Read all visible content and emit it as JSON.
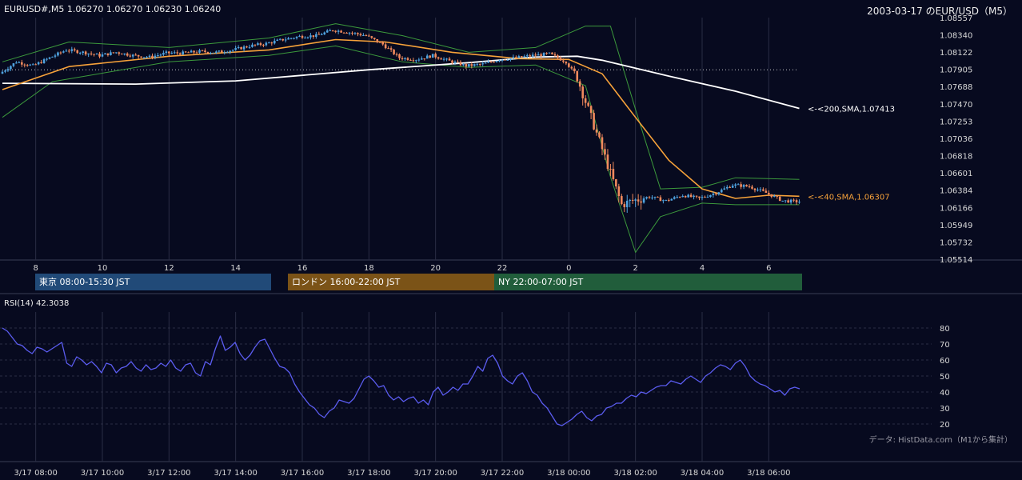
{
  "header": {
    "symbol_info": "EURUSD#,M5 1.06270 1.06270 1.06230 1.06240",
    "date_title": "2003-03-17 のEUR/USD（M5）"
  },
  "colors": {
    "background": "#070a1f",
    "grid": "#2a2d44",
    "axis_text": "#d7d7d7",
    "candle_up": "#4fa3e0",
    "candle_down": "#f08a5d",
    "bollinger": "#3c9a3c",
    "sma40": "#f7a23a",
    "sma200": "#ffffff",
    "rsi": "#5b5cf0",
    "session_tokyo": "#214a78",
    "session_london": "#7b5317",
    "session_ny": "#215d3b"
  },
  "price_axis_labels": [
    "1.08557",
    "1.08340",
    "1.08122",
    "1.07905",
    "1.07688",
    "1.07470",
    "1.07253",
    "1.07036",
    "1.06818",
    "1.06601",
    "1.06384",
    "1.06166",
    "1.05949",
    "1.05732",
    "1.05514"
  ],
  "hour_axis_labels": [
    "8",
    "10",
    "12",
    "14",
    "16",
    "18",
    "20",
    "22",
    "0",
    "2",
    "4",
    "6"
  ],
  "sessions": [
    {
      "label": "東京 08:00-15:30 JST"
    },
    {
      "label": "ロンドン 16:00-22:00 JST"
    },
    {
      "label": "NY 22:00-07:00 JST"
    }
  ],
  "indicator_labels": {
    "sma200": "<-<200,SMA,1.07413",
    "sma40": "<-<40,SMA,1.06307"
  },
  "rsi": {
    "title": "RSI(14) 42.3038",
    "ticks": [
      "80",
      "70",
      "60",
      "50",
      "40",
      "30",
      "20"
    ]
  },
  "source_note": "データ: HistData.com（M1から集計）",
  "time_axis_labels": [
    "3/17 08:00",
    "3/17 10:00",
    "3/17 12:00",
    "3/17 14:00",
    "3/17 16:00",
    "3/17 18:00",
    "3/17 20:00",
    "3/17 22:00",
    "3/18 00:00",
    "3/18 02:00",
    "3/18 04:00",
    "3/18 06:00"
  ],
  "chart_data": [
    {
      "type": "candlestick",
      "title": "2003-03-17 のEUR/USD（M5）",
      "symbol": "EURUSD#,M5",
      "last_ohlc": {
        "open": 1.0627,
        "high": 1.0627,
        "low": 1.0623,
        "close": 1.0624
      },
      "ylim": [
        1.05514,
        1.08557
      ],
      "x_hour_ticks": [
        "8",
        "10",
        "12",
        "14",
        "16",
        "18",
        "20",
        "22",
        "0",
        "2",
        "4",
        "6"
      ],
      "close_path": [
        {
          "t": "07:00",
          "v": 1.0785
        },
        {
          "t": "07:30",
          "v": 1.08
        },
        {
          "t": "08:00",
          "v": 1.0795
        },
        {
          "t": "08:30",
          "v": 1.0805
        },
        {
          "t": "09:00",
          "v": 1.0815
        },
        {
          "t": "09:30",
          "v": 1.0812
        },
        {
          "t": "10:00",
          "v": 1.0808
        },
        {
          "t": "10:30",
          "v": 1.0812
        },
        {
          "t": "11:00",
          "v": 1.0808
        },
        {
          "t": "11:30",
          "v": 1.0806
        },
        {
          "t": "12:00",
          "v": 1.0811
        },
        {
          "t": "12:30",
          "v": 1.0811
        },
        {
          "t": "13:00",
          "v": 1.0813
        },
        {
          "t": "13:30",
          "v": 1.0812
        },
        {
          "t": "14:00",
          "v": 1.0815
        },
        {
          "t": "14:30",
          "v": 1.082
        },
        {
          "t": "15:00",
          "v": 1.0823
        },
        {
          "t": "15:30",
          "v": 1.0828
        },
        {
          "t": "16:00",
          "v": 1.0832
        },
        {
          "t": "16:30",
          "v": 1.0833
        },
        {
          "t": "17:00",
          "v": 1.084
        },
        {
          "t": "17:30",
          "v": 1.0837
        },
        {
          "t": "18:00",
          "v": 1.0833
        },
        {
          "t": "18:30",
          "v": 1.0822
        },
        {
          "t": "19:00",
          "v": 1.0805
        },
        {
          "t": "19:30",
          "v": 1.0803
        },
        {
          "t": "20:00",
          "v": 1.0808
        },
        {
          "t": "20:30",
          "v": 1.0801
        },
        {
          "t": "21:00",
          "v": 1.0795
        },
        {
          "t": "21:30",
          "v": 1.0797
        },
        {
          "t": "22:00",
          "v": 1.0803
        },
        {
          "t": "22:30",
          "v": 1.0805
        },
        {
          "t": "23:00",
          "v": 1.0808
        },
        {
          "t": "23:30",
          "v": 1.081
        },
        {
          "t": "00:00",
          "v": 1.08
        },
        {
          "t": "00:20",
          "v": 1.078
        },
        {
          "t": "00:40",
          "v": 1.074
        },
        {
          "t": "01:00",
          "v": 1.07
        },
        {
          "t": "01:20",
          "v": 1.066
        },
        {
          "t": "01:40",
          "v": 1.062
        },
        {
          "t": "02:00",
          "v": 1.0625
        },
        {
          "t": "02:30",
          "v": 1.063
        },
        {
          "t": "03:00",
          "v": 1.0625
        },
        {
          "t": "03:30",
          "v": 1.0632
        },
        {
          "t": "04:00",
          "v": 1.0628
        },
        {
          "t": "04:30",
          "v": 1.0635
        },
        {
          "t": "05:00",
          "v": 1.0645
        },
        {
          "t": "05:30",
          "v": 1.0643
        },
        {
          "t": "06:00",
          "v": 1.0635
        },
        {
          "t": "06:30",
          "v": 1.0625
        },
        {
          "t": "06:55",
          "v": 1.0624
        }
      ],
      "sma200": [
        {
          "t": "07:00",
          "v": 1.0773
        },
        {
          "t": "11:00",
          "v": 1.0772
        },
        {
          "t": "14:00",
          "v": 1.0776
        },
        {
          "t": "18:00",
          "v": 1.079
        },
        {
          "t": "21:00",
          "v": 1.0799
        },
        {
          "t": "23:00",
          "v": 1.0806
        },
        {
          "t": "00:15",
          "v": 1.0807
        },
        {
          "t": "01:00",
          "v": 1.0802
        },
        {
          "t": "03:00",
          "v": 1.0782
        },
        {
          "t": "05:00",
          "v": 1.0763
        },
        {
          "t": "06:55",
          "v": 1.07413
        }
      ],
      "sma40": [
        {
          "t": "07:00",
          "v": 1.0765
        },
        {
          "t": "09:00",
          "v": 1.0794
        },
        {
          "t": "12:00",
          "v": 1.0807
        },
        {
          "t": "15:00",
          "v": 1.0815
        },
        {
          "t": "17:00",
          "v": 1.0828
        },
        {
          "t": "18:30",
          "v": 1.0825
        },
        {
          "t": "20:30",
          "v": 1.0812
        },
        {
          "t": "22:30",
          "v": 1.0804
        },
        {
          "t": "00:00",
          "v": 1.0803
        },
        {
          "t": "01:00",
          "v": 1.0785
        },
        {
          "t": "02:00",
          "v": 1.073
        },
        {
          "t": "03:00",
          "v": 1.0676
        },
        {
          "t": "04:00",
          "v": 1.064
        },
        {
          "t": "05:00",
          "v": 1.0628
        },
        {
          "t": "06:00",
          "v": 1.0632
        },
        {
          "t": "06:55",
          "v": 1.06307
        }
      ],
      "bollinger_upper": [
        {
          "t": "07:00",
          "v": 1.08
        },
        {
          "t": "09:00",
          "v": 1.0825
        },
        {
          "t": "12:00",
          "v": 1.0818
        },
        {
          "t": "15:00",
          "v": 1.083
        },
        {
          "t": "17:00",
          "v": 1.0848
        },
        {
          "t": "19:00",
          "v": 1.0833
        },
        {
          "t": "21:00",
          "v": 1.0812
        },
        {
          "t": "23:00",
          "v": 1.0818
        },
        {
          "t": "00:30",
          "v": 1.0845
        },
        {
          "t": "01:15",
          "v": 1.0845
        },
        {
          "t": "02:00",
          "v": 1.074
        },
        {
          "t": "02:45",
          "v": 1.064
        },
        {
          "t": "04:00",
          "v": 1.0642
        },
        {
          "t": "05:00",
          "v": 1.0654
        },
        {
          "t": "06:55",
          "v": 1.0652
        }
      ],
      "bollinger_lower": [
        {
          "t": "07:00",
          "v": 1.073
        },
        {
          "t": "08:30",
          "v": 1.0775
        },
        {
          "t": "12:00",
          "v": 1.08
        },
        {
          "t": "15:00",
          "v": 1.0808
        },
        {
          "t": "17:00",
          "v": 1.082
        },
        {
          "t": "19:00",
          "v": 1.08
        },
        {
          "t": "21:00",
          "v": 1.0793
        },
        {
          "t": "23:00",
          "v": 1.0796
        },
        {
          "t": "00:30",
          "v": 1.077
        },
        {
          "t": "01:15",
          "v": 1.0655
        },
        {
          "t": "02:00",
          "v": 1.056
        },
        {
          "t": "02:45",
          "v": 1.0605
        },
        {
          "t": "04:00",
          "v": 1.0622
        },
        {
          "t": "05:00",
          "v": 1.062
        },
        {
          "t": "06:55",
          "v": 1.062
        }
      ],
      "reference_level": 1.079,
      "annotations": [
        "<-<200,SMA,1.07413",
        "<-<40,SMA,1.06307"
      ]
    },
    {
      "type": "line",
      "title": "RSI(14) 42.3038",
      "ylim": [
        15,
        85
      ],
      "y_ticks": [
        80,
        70,
        60,
        50,
        40,
        30,
        20
      ],
      "x_labels": [
        "3/17 08:00",
        "3/17 10:00",
        "3/17 12:00",
        "3/17 14:00",
        "3/17 16:00",
        "3/17 18:00",
        "3/17 20:00",
        "3/17 22:00",
        "3/18 00:00",
        "3/18 02:00",
        "3/18 04:00",
        "3/18 06:00"
      ],
      "series": [
        {
          "values": [
            80,
            78,
            74,
            70,
            69,
            66,
            64,
            68,
            67,
            65,
            67,
            69,
            71,
            58,
            56,
            62,
            60,
            57,
            59,
            56,
            52,
            58,
            57,
            52,
            55,
            56,
            59,
            55,
            53,
            57,
            54,
            55,
            58,
            56,
            60,
            55,
            53,
            57,
            58,
            52,
            50,
            59,
            57,
            67,
            75,
            66,
            68,
            71,
            64,
            60,
            63,
            68,
            72,
            73,
            67,
            61,
            56,
            55,
            52,
            45,
            40,
            36,
            32,
            30,
            26,
            24,
            28,
            30,
            35,
            34,
            33,
            36,
            42,
            48,
            50,
            47,
            43,
            44,
            38,
            35,
            37,
            34,
            36,
            37,
            33,
            35,
            32,
            40,
            43,
            38,
            40,
            43,
            41,
            45,
            45,
            50,
            56,
            53,
            61,
            63,
            58,
            50,
            47,
            45,
            50,
            52,
            47,
            40,
            38,
            33,
            30,
            25,
            20,
            19,
            21,
            23,
            26,
            28,
            24,
            22,
            25,
            26,
            30,
            31,
            33,
            33,
            36,
            38,
            37,
            40,
            39,
            41,
            43,
            44,
            44,
            47,
            46,
            45,
            48,
            50,
            48,
            46,
            50,
            52,
            55,
            57,
            56,
            54,
            58,
            60,
            56,
            50,
            47,
            45,
            44,
            42,
            40,
            41,
            38,
            42,
            43,
            42
          ]
        }
      ]
    }
  ]
}
